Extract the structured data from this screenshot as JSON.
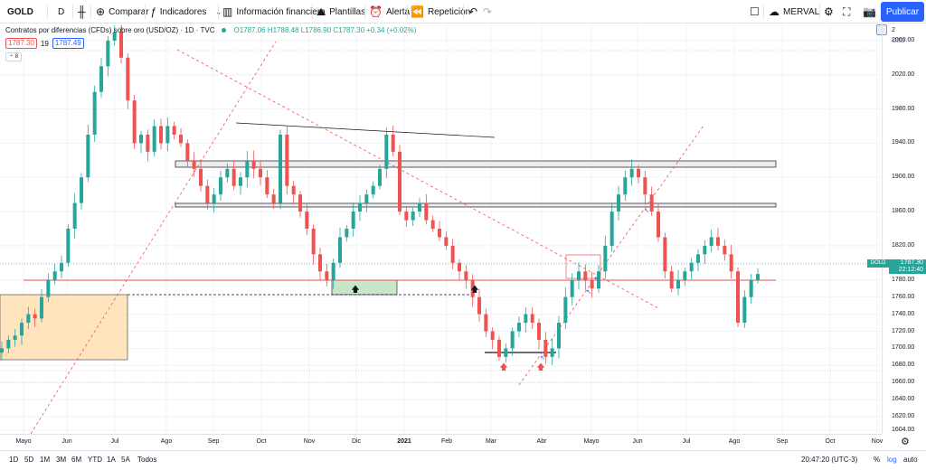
{
  "toolbar": {
    "symbol": "GOLD",
    "interval": "D",
    "compare": "Comparar",
    "indicators": "Indicadores",
    "financials": "Información financiera",
    "templates": "Plantillas",
    "alert": "Alerta",
    "replay": "Repetición",
    "layout": "MERVAL",
    "publish": "Publicar"
  },
  "legend": {
    "title": "Contratos por diferencias (CFDs) sobre oro (USD/OZ) · 1D · TVC",
    "ohlc": "O1787.06  H1788.48  L1786.90  C1787.30  +0.34 (+0.02%)",
    "bid": "1787.30",
    "spread": "19",
    "ask": "1787.49",
    "indicator_count": "8"
  },
  "price_axis": {
    "currency": "USD",
    "ticks": [
      "2060.00",
      "2020.00",
      "1980.00",
      "1940.00",
      "1900.00",
      "1860.00",
      "1820.00",
      "1800.00",
      "1780.00",
      "1760.00",
      "1740.00",
      "1720.00",
      "1700.00",
      "1680.00",
      "1660.00",
      "1640.00",
      "1620.00",
      "1604.00"
    ],
    "top_partial": "2",
    "current_symbol": "GOLD",
    "current_price": "1787.30",
    "countdown": "22:12:40"
  },
  "time_axis": {
    "ticks": [
      "Mayo",
      "Jun",
      "Jul",
      "Ago",
      "Sep",
      "Oct",
      "Nov",
      "Dic",
      "2021",
      "Feb",
      "Mar",
      "Abr",
      "Mayo",
      "Jun",
      "Jul",
      "Ago",
      "Sep",
      "Oct",
      "Nov"
    ]
  },
  "bottom": {
    "ranges": [
      "1D",
      "5D",
      "1M",
      "3M",
      "6M",
      "YTD",
      "1A",
      "5A",
      "Todos"
    ],
    "time": "20:47:20 (UTC-3)",
    "percent": "%",
    "log": "log",
    "auto": "auto"
  },
  "chart_data": {
    "type": "candlestick",
    "price_range": [
      1600,
      2080
    ],
    "x_months": [
      "Mayo",
      "Jun",
      "Jul",
      "Ago",
      "Sep",
      "Oct",
      "Nov",
      "Dic",
      "2021",
      "Feb",
      "Mar",
      "Abr",
      "Mayo",
      "Jun",
      "Jul",
      "Ago",
      "Sep",
      "Oct",
      "Nov"
    ],
    "colors": {
      "up": "#26a69a",
      "down": "#ef5350",
      "zone_green": "#c8e6c9",
      "zone_orange": "#ffe0b2",
      "trend_red": "#ef5350"
    },
    "series_close": [
      1700,
      1710,
      1715,
      1730,
      1740,
      1735,
      1760,
      1780,
      1790,
      1800,
      1840,
      1870,
      1900,
      1950,
      2000,
      2030,
      2060,
      2070,
      2040,
      1990,
      1940,
      1950,
      1930,
      1960,
      1940,
      1960,
      1950,
      1940,
      1920,
      1910,
      1890,
      1870,
      1880,
      1900,
      1910,
      1890,
      1900,
      1920,
      1910,
      1900,
      1880,
      1870,
      1950,
      1890,
      1880,
      1860,
      1840,
      1810,
      1790,
      1780,
      1800,
      1830,
      1840,
      1860,
      1870,
      1880,
      1890,
      1910,
      1950,
      1930,
      1860,
      1850,
      1860,
      1870,
      1850,
      1840,
      1830,
      1820,
      1800,
      1790,
      1780,
      1760,
      1740,
      1720,
      1710,
      1690,
      1700,
      1720,
      1730,
      1740,
      1730,
      1710,
      1690,
      1700,
      1730,
      1760,
      1780,
      1790,
      1780,
      1770,
      1790,
      1820,
      1860,
      1880,
      1900,
      1910,
      1900,
      1880,
      1860,
      1830,
      1790,
      1770,
      1780,
      1790,
      1800,
      1810,
      1820,
      1830,
      1820,
      1810,
      1790,
      1730,
      1760,
      1780,
      1787
    ]
  }
}
